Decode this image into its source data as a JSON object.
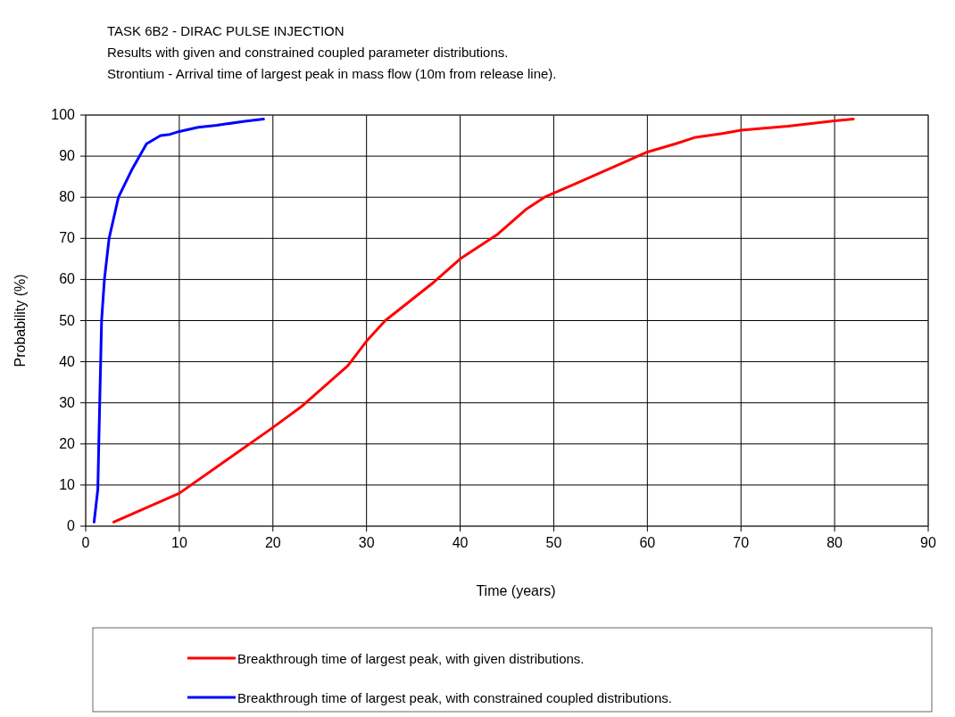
{
  "chart_data": {
    "type": "line",
    "title": "TASK 6B2 - DIRAC PULSE INJECTION",
    "subtitle": "Results with given and constrained coupled parameter distributions.",
    "annotations": [
      "Strontium - Arrival time of largest peak in mass flow   (10m from release line)."
    ],
    "xlabel": "Time (years)",
    "ylabel": "Probability (%)",
    "xlim": [
      0,
      90
    ],
    "xticks": [
      0,
      10,
      20,
      30,
      40,
      50,
      60,
      70,
      80,
      90
    ],
    "ylim": [
      0,
      100
    ],
    "yticks": [
      0,
      10,
      20,
      30,
      40,
      50,
      60,
      70,
      80,
      90,
      100
    ],
    "grid": true,
    "legend": "bottom",
    "marker": "none",
    "line_style": "solid",
    "series": [
      {
        "name": "Breakthrough time of largest peak, with given distributions.",
        "color": "#ff0000",
        "x": [
          3,
          10,
          15,
          20,
          23,
          28,
          30,
          32,
          37,
          40,
          44,
          47,
          49,
          53,
          57,
          60,
          63,
          65,
          68,
          70,
          75,
          80,
          82
        ],
        "values": [
          1,
          8,
          16,
          24,
          29,
          39,
          45,
          50,
          59,
          65,
          71,
          77,
          80,
          84,
          88,
          91,
          93,
          94.5,
          95.5,
          96.3,
          97.3,
          98.6,
          99
        ]
      },
      {
        "name": "Breakthrough time of largest peak, with constrained coupled distributions.",
        "color": "#0000ff",
        "x": [
          0.9,
          1.1,
          1.3,
          1.4,
          1.5,
          1.6,
          1.7,
          2,
          2.5,
          3,
          3.5,
          5,
          6.5,
          8,
          9,
          10,
          12,
          14,
          17,
          19
        ],
        "values": [
          1,
          5,
          9,
          20,
          30,
          40,
          50,
          60,
          70,
          75,
          80,
          87,
          93,
          95,
          95.3,
          96,
          97,
          97.5,
          98.5,
          99
        ]
      }
    ]
  }
}
